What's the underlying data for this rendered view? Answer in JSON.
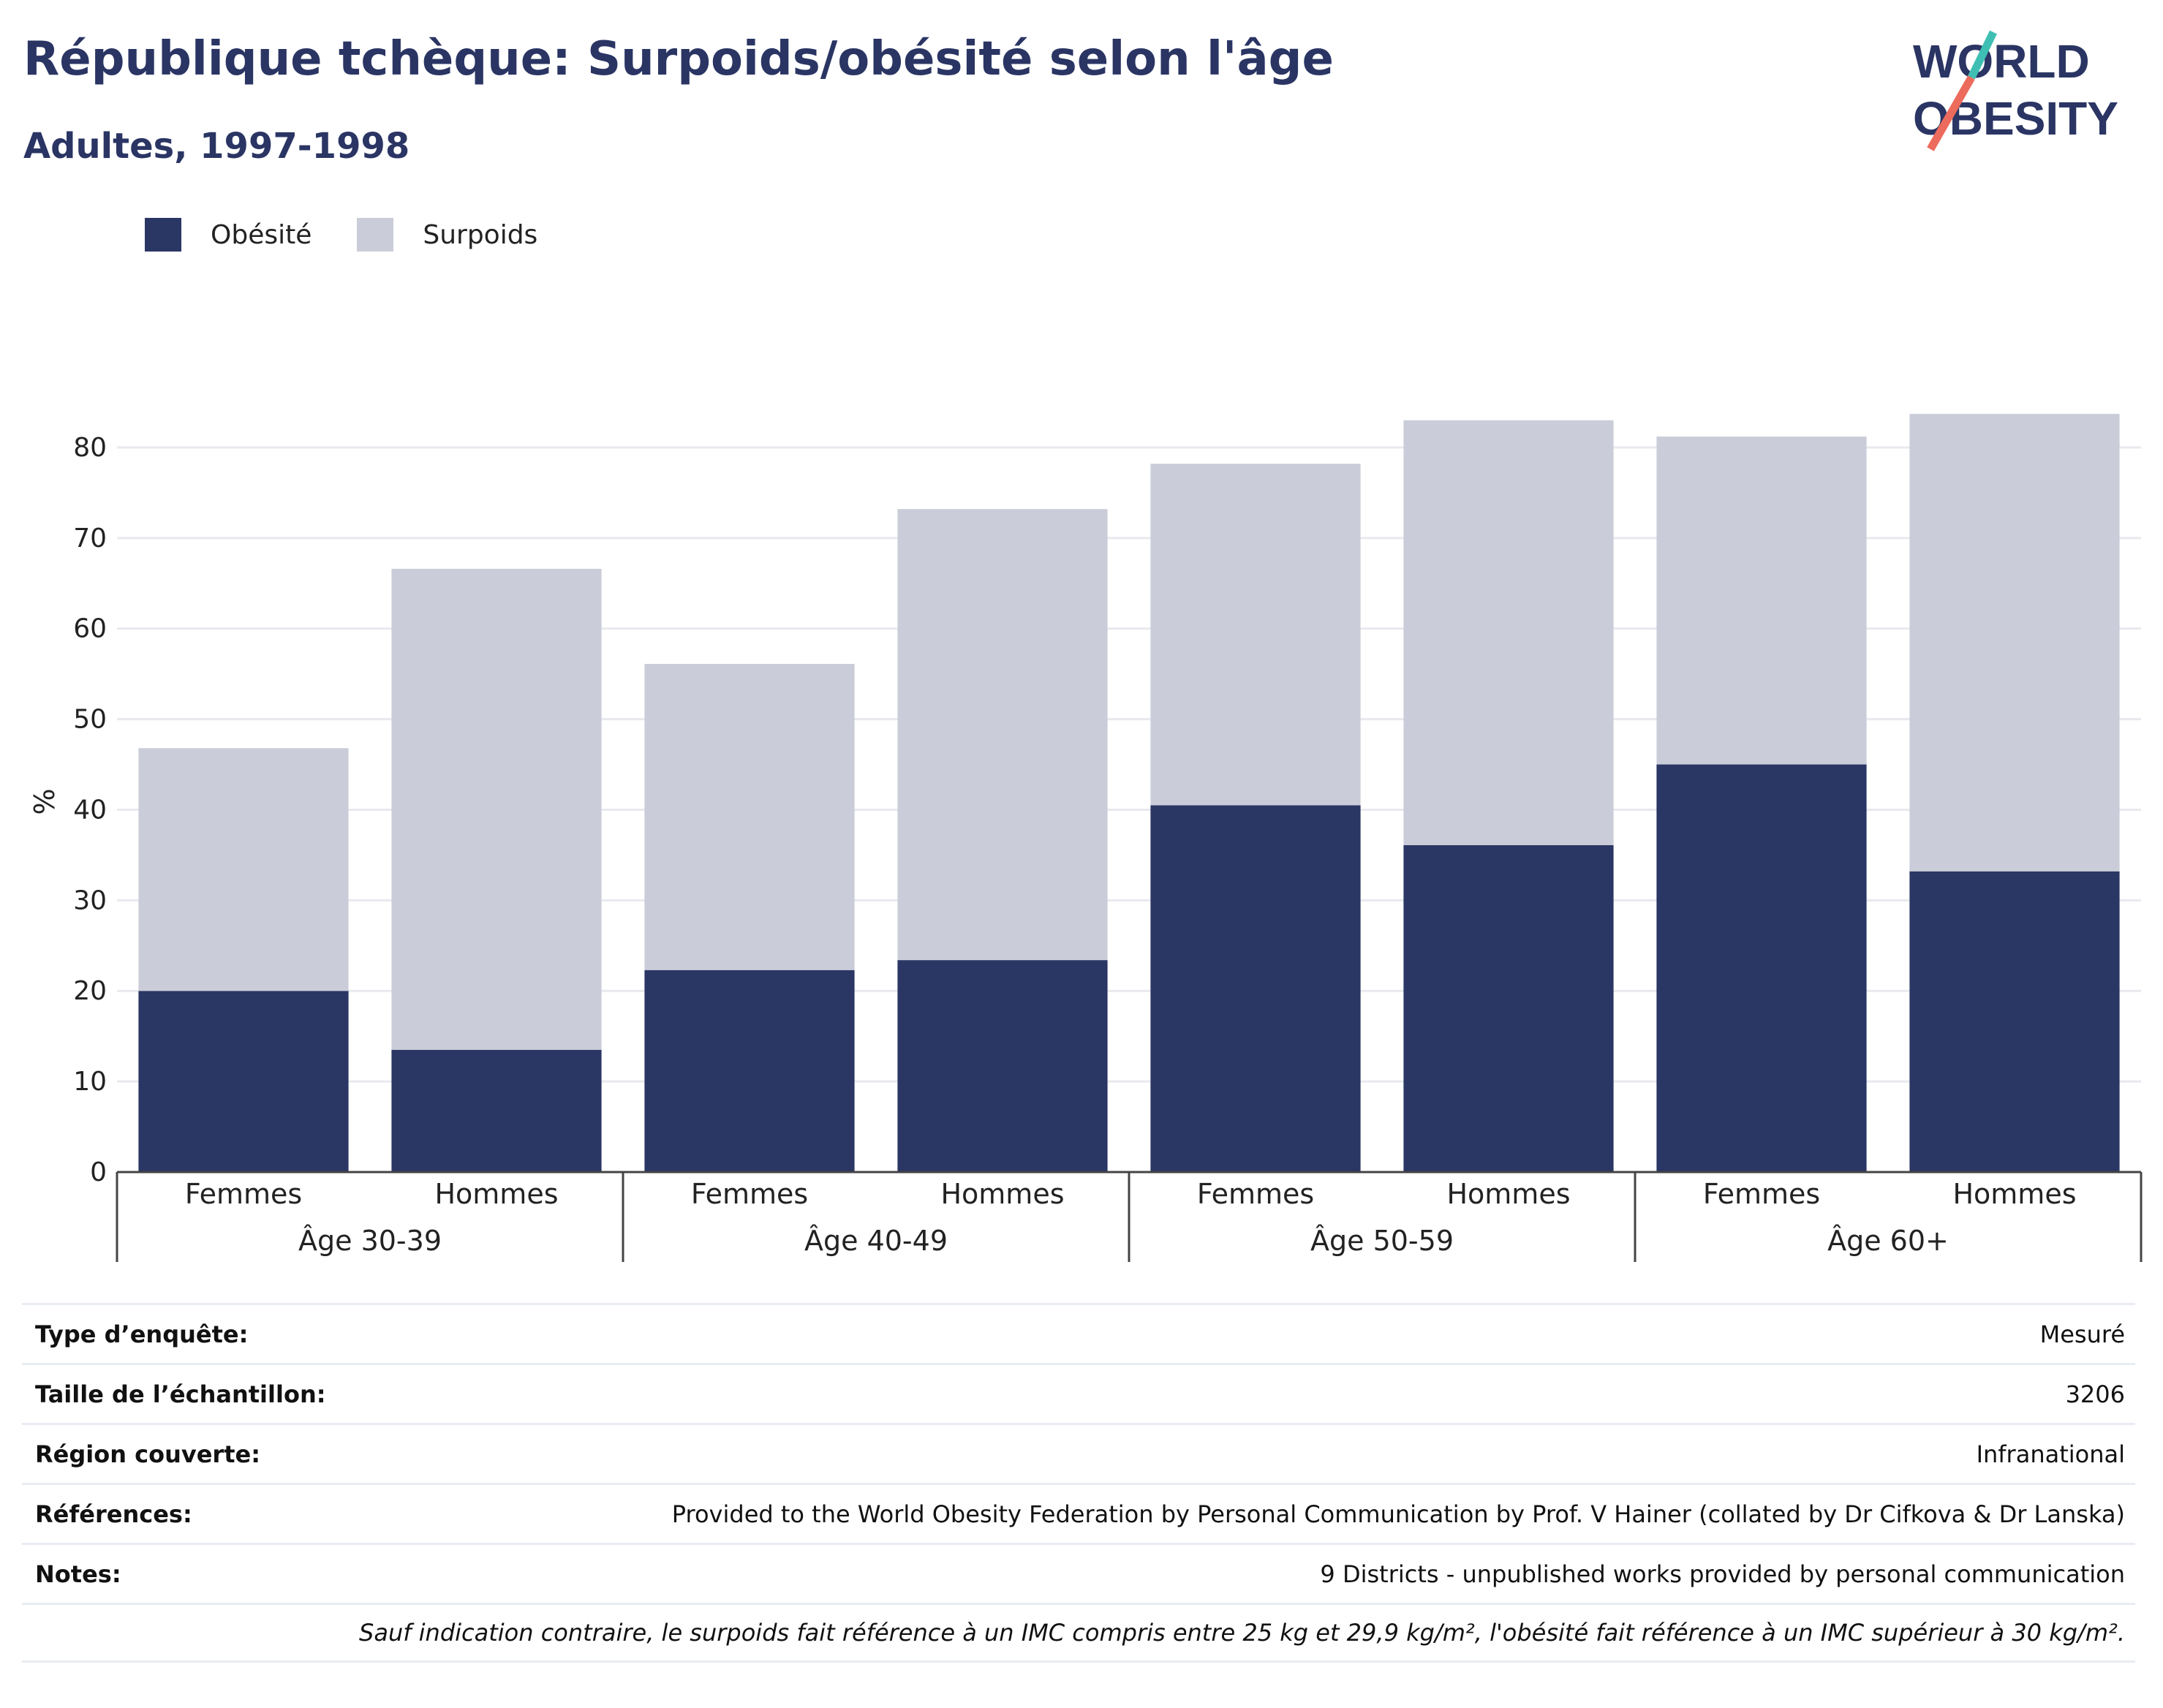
{
  "title": "République tchèque: Surpoids/obésité selon l'âge",
  "subtitle": "Adultes, 1997-1998",
  "logo": {
    "line1": "WORLD",
    "line2": "OBESITY"
  },
  "colors": {
    "obesity": "#2a3664",
    "overweight": "#cacdd9",
    "title": "#2a3564",
    "accent_teal": "#3fbfb3",
    "accent_coral": "#ec6b5c"
  },
  "chart_data": {
    "type": "bar",
    "stacked": true,
    "ylabel": "%",
    "ylim": [
      0,
      85
    ],
    "yticks": [
      0,
      10,
      20,
      30,
      40,
      50,
      60,
      70,
      80
    ],
    "grid": true,
    "legend_position": "top-left",
    "groups": [
      {
        "label": "Âge 30-39",
        "categories": [
          "Femmes",
          "Hommes"
        ]
      },
      {
        "label": "Âge 40-49",
        "categories": [
          "Femmes",
          "Hommes"
        ]
      },
      {
        "label": "Âge 50-59",
        "categories": [
          "Femmes",
          "Hommes"
        ]
      },
      {
        "label": "Âge 60+",
        "categories": [
          "Femmes",
          "Hommes"
        ]
      }
    ],
    "series": [
      {
        "name": "Obésité",
        "color": "#2a3664",
        "values": [
          20.0,
          13.5,
          22.3,
          23.4,
          40.5,
          36.1,
          45.0,
          33.2
        ]
      },
      {
        "name": "Surpoids",
        "color": "#cacdd9",
        "values": [
          26.8,
          53.1,
          33.8,
          49.8,
          37.7,
          46.9,
          36.2,
          50.5
        ]
      }
    ]
  },
  "info": [
    {
      "label": "Type d’enquête:",
      "value": "Mesuré"
    },
    {
      "label": "Taille de l’échantillon:",
      "value": "3206"
    },
    {
      "label": "Région couverte:",
      "value": "Infranational"
    },
    {
      "label": "Références:",
      "value": "Provided to the World Obesity Federation by Personal Communication by Prof. V Hainer (collated by Dr Cifkova & Dr Lanska)"
    },
    {
      "label": "Notes:",
      "value": "9 Districts - unpublished works provided by personal communication"
    }
  ],
  "footnote": "Sauf indication contraire, le surpoids fait référence à un IMC compris entre 25 kg et 29,9 kg/m², l'obésité fait référence à un IMC supérieur à 30 kg/m²."
}
